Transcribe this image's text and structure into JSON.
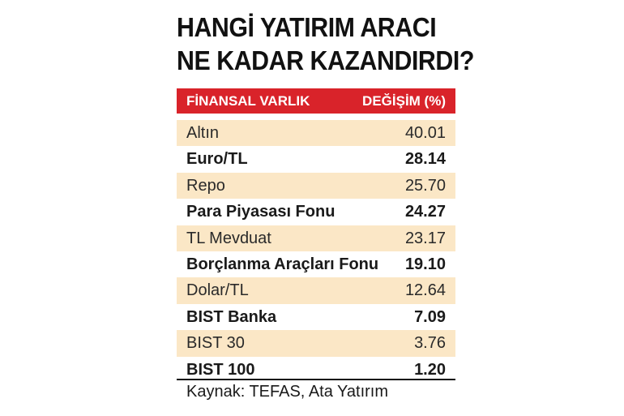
{
  "chart_data": {
    "type": "table",
    "title": [
      "HANGİ YATIRIM ARACI",
      "NE KADAR KAZANDIRDI?"
    ],
    "columns": [
      "FİNANSAL VARLIK",
      "DEĞİŞİM (%)"
    ],
    "rows": [
      {
        "name": "Altın",
        "value": "40.01",
        "bold": false
      },
      {
        "name": "Euro/TL",
        "value": "28.14",
        "bold": true
      },
      {
        "name": "Repo",
        "value": "25.70",
        "bold": false
      },
      {
        "name": "Para Piyasası Fonu",
        "value": "24.27",
        "bold": true
      },
      {
        "name": "TL Mevduat",
        "value": "23.17",
        "bold": false
      },
      {
        "name": "Borçlanma Araçları Fonu",
        "value": "19.10",
        "bold": true
      },
      {
        "name": "Dolar/TL",
        "value": "12.64",
        "bold": false
      },
      {
        "name": "BIST Banka",
        "value": "7.09",
        "bold": true
      },
      {
        "name": "BIST 30",
        "value": "3.76",
        "bold": false
      },
      {
        "name": "BIST 100",
        "value": "1.20",
        "bold": true
      }
    ],
    "source": "Kaynak: TEFAS, Ata Yatırım",
    "colors": {
      "header_bg": "#d9232a",
      "header_text": "#ffffff",
      "shaded_row": "#fbe7c6",
      "plain_row": "#ffffff"
    }
  }
}
